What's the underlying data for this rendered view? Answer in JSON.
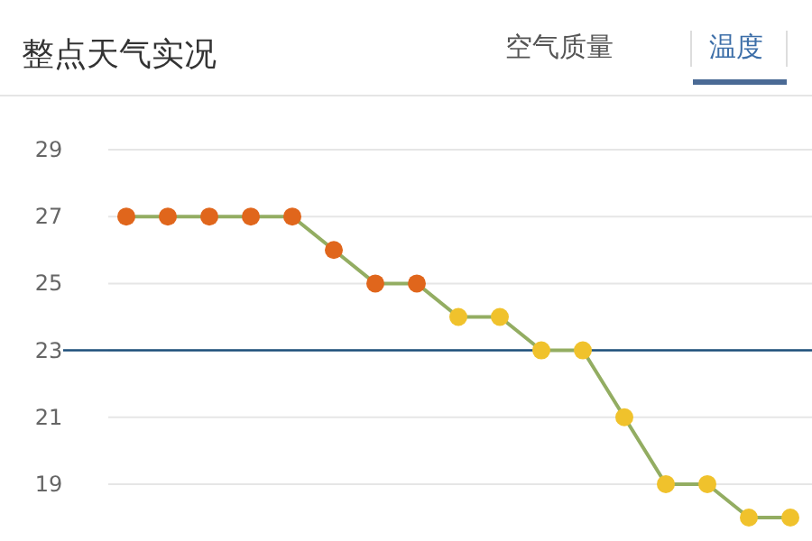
{
  "chart_data": {
    "type": "line",
    "title": "整点天气实况",
    "annotations": [
      "空气质量",
      "温度"
    ],
    "categories": [
      null,
      null,
      null,
      null,
      null,
      null,
      null,
      null,
      null,
      null,
      null,
      null,
      null,
      null,
      null,
      null,
      null
    ],
    "values": [
      27,
      27,
      27,
      27,
      27,
      26,
      25,
      25,
      24,
      24,
      23,
      23,
      21,
      19,
      19,
      18,
      18
    ],
    "color": "#93ad62",
    "colors": [
      "#e0661c",
      "#e0661c",
      "#e0661c",
      "#e0661c",
      "#e0661c",
      "#e0661c",
      "#e0661c",
      "#e0661c",
      "#f0c22c",
      "#f0c22c",
      "#f0c22c",
      "#f0c22c",
      "#f0c22c",
      "#f0c22c",
      "#f0c22c",
      "#f0c22c",
      "#f0c22c"
    ],
    "marker": "circle",
    "line_style": "solid",
    "ylim": [
      17.3,
      29
    ],
    "yticks": [
      19,
      21,
      23,
      25,
      27,
      29
    ],
    "grid": "y",
    "tick_labels": "y",
    "ref_lines": [
      {
        "axis": "y",
        "value": 23,
        "color": "#1d4f7a"
      }
    ]
  }
}
